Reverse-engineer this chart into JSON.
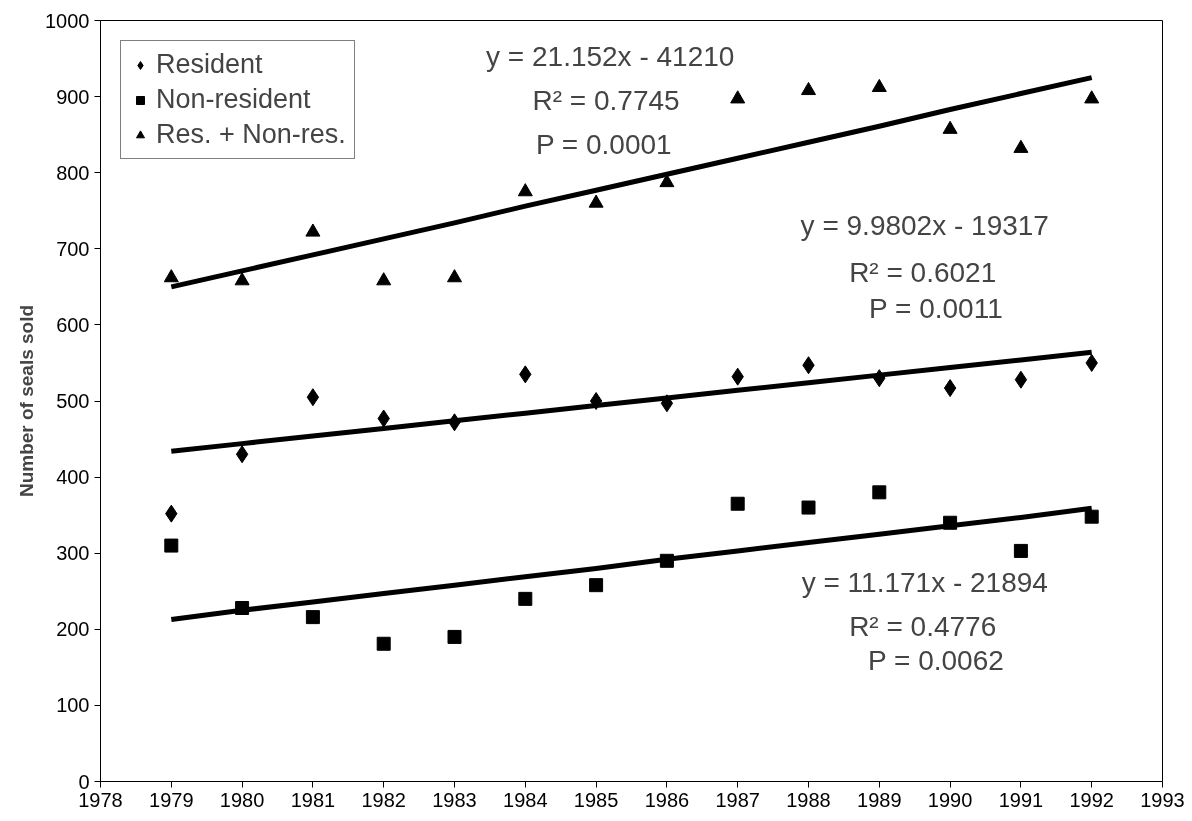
{
  "chart_data": {
    "type": "scatter",
    "ylabel": "Number of seals sold",
    "x": [
      1979,
      1980,
      1981,
      1982,
      1983,
      1984,
      1985,
      1986,
      1987,
      1988,
      1989,
      1990,
      1991,
      1992
    ],
    "series": [
      {
        "name": "Resident",
        "color": "#000000",
        "marker": "diamond",
        "values": [
          352,
          430,
          505,
          477,
          472,
          535,
          500,
          497,
          532,
          547,
          530,
          517,
          528,
          550
        ]
      },
      {
        "name": "Non-resident",
        "color": "#000000",
        "marker": "square",
        "values": [
          310,
          228,
          216,
          181,
          190,
          240,
          258,
          290,
          365,
          360,
          380,
          340,
          303,
          348
        ]
      },
      {
        "name": "Res. + Non-res.",
        "color": "#000000",
        "marker": "triangle",
        "values": [
          662,
          658,
          722,
          658,
          662,
          775,
          760,
          787,
          897,
          908,
          912,
          857,
          832,
          897
        ]
      },
      {
        "type": "line",
        "color": "#000000",
        "values": [
          650,
          671,
          692,
          713,
          734,
          756,
          777,
          798,
          819,
          840,
          861,
          883,
          904,
          925
        ]
      },
      {
        "type": "line",
        "color": "#000000",
        "values": [
          434,
          444,
          454,
          464,
          474,
          484,
          494,
          504,
          514,
          524,
          534,
          544,
          554,
          564
        ]
      },
      {
        "type": "line",
        "color": "#000000",
        "values": [
          213,
          225,
          236,
          247,
          258,
          269,
          280,
          292,
          303,
          314,
          325,
          336,
          347,
          359
        ]
      }
    ],
    "annotations": [
      "y = 21.152x - 41210",
      "R² = 0.7745",
      "P = 0.0001",
      "y = 9.9802x - 19317",
      "R² = 0.6021",
      "P = 0.0011",
      "y = 11.171x - 21894",
      "R² = 0.4776",
      "P = 0.0062"
    ],
    "xlim": [
      1978,
      1993
    ],
    "xticks": [
      1978,
      1979,
      1980,
      1981,
      1982,
      1983,
      1984,
      1985,
      1986,
      1987,
      1988,
      1989,
      1990,
      1991,
      1992,
      1993
    ],
    "ylim": [
      0,
      1000
    ],
    "yticks": [
      0,
      100,
      200,
      300,
      400,
      500,
      600,
      700,
      800,
      900,
      1000
    ],
    "grid": false,
    "legend": "top left",
    "line_style": "solid"
  }
}
